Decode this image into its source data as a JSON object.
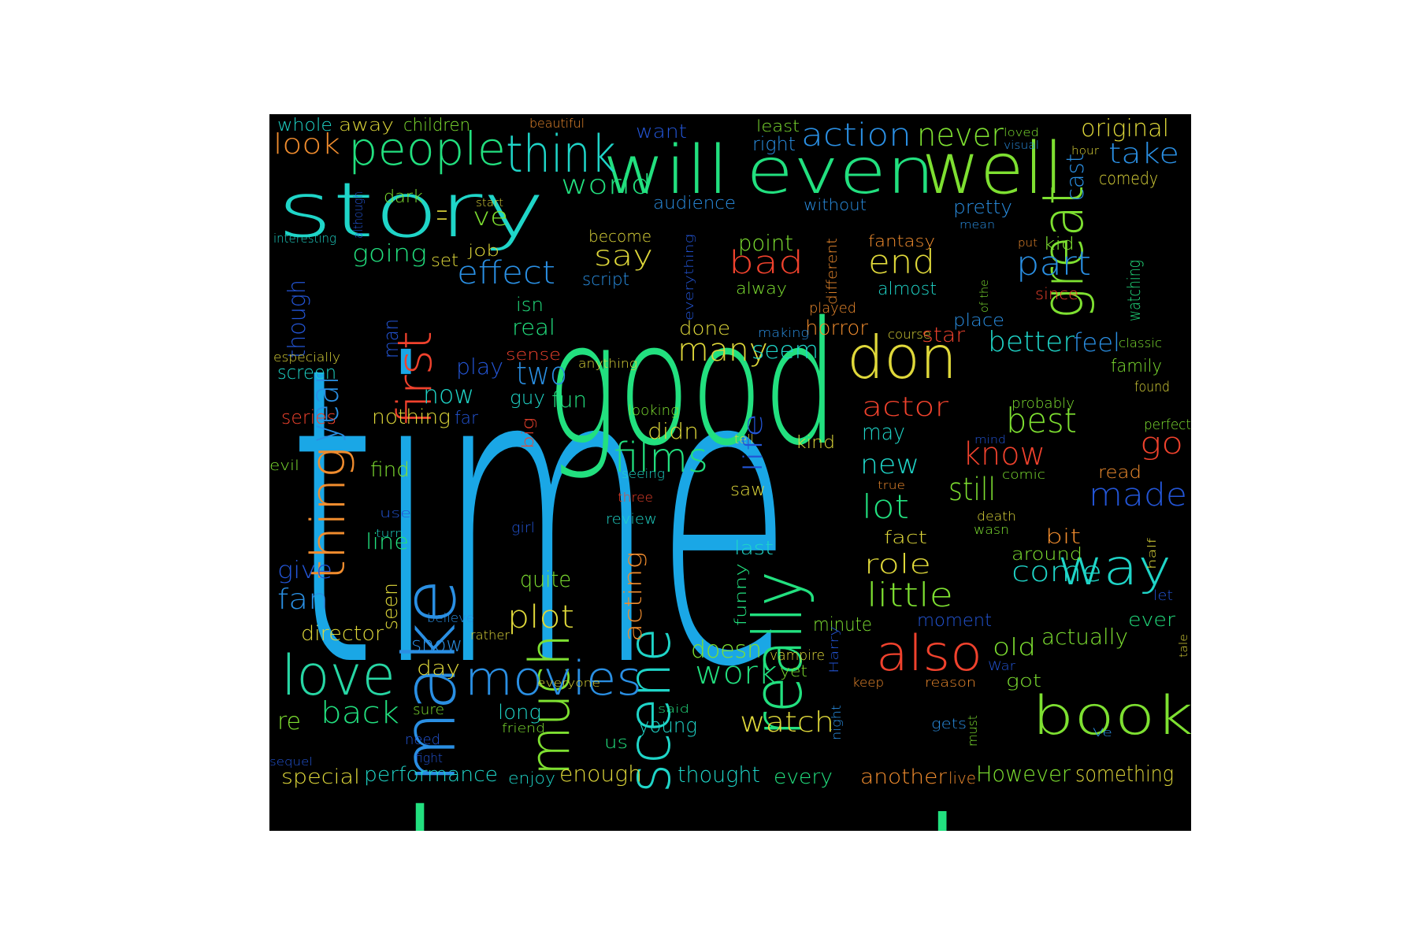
{
  "palette": {
    "blue": "#1aa7e6",
    "teal": "#1fd5c8",
    "green": "#22e07f",
    "lime": "#7ee031",
    "yellow": "#dfd83a",
    "orange": "#f08c2e",
    "red": "#f0422d",
    "navy": "#2355d6",
    "sky": "#2a8fe3",
    "mint": "#27d6a4"
  },
  "words": [
    {
      "t": "time",
      "c": "blue"
    },
    {
      "t": "good",
      "c": "green"
    },
    {
      "t": "character",
      "c": "green"
    },
    {
      "t": "see",
      "c": "navy"
    },
    {
      "t": "story",
      "c": "teal"
    },
    {
      "t": "will",
      "c": "green"
    },
    {
      "t": "even",
      "c": "green"
    },
    {
      "t": "well",
      "c": "lime"
    },
    {
      "t": "people",
      "c": "green"
    },
    {
      "t": "think",
      "c": "teal"
    },
    {
      "t": "make",
      "c": "sky"
    },
    {
      "t": "first",
      "c": "red"
    },
    {
      "t": "year",
      "c": "sky"
    },
    {
      "t": "thing",
      "c": "orange"
    },
    {
      "t": "much",
      "c": "lime"
    },
    {
      "t": "really",
      "c": "green"
    },
    {
      "t": "scene",
      "c": "teal"
    },
    {
      "t": "great",
      "c": "lime"
    },
    {
      "t": "don",
      "c": "yellow"
    },
    {
      "t": "also",
      "c": "red"
    },
    {
      "t": "book",
      "c": "lime"
    },
    {
      "t": "movies",
      "c": "sky"
    },
    {
      "t": "love",
      "c": "mint"
    },
    {
      "t": "way",
      "c": "teal"
    },
    {
      "t": "action",
      "c": "sky"
    },
    {
      "t": "never",
      "c": "lime"
    },
    {
      "t": "original",
      "c": "yellow"
    },
    {
      "t": "take",
      "c": "sky"
    },
    {
      "t": "comedy",
      "c": "yellow"
    },
    {
      "t": "cast",
      "c": "sky"
    },
    {
      "t": "look",
      "c": "orange"
    },
    {
      "t": "whole",
      "c": "teal"
    },
    {
      "t": "away",
      "c": "yellow"
    },
    {
      "t": "children",
      "c": "lime"
    },
    {
      "t": "beautiful",
      "c": "orange"
    },
    {
      "t": "want",
      "c": "navy"
    },
    {
      "t": "least",
      "c": "lime"
    },
    {
      "t": "right",
      "c": "sky"
    },
    {
      "t": "loved",
      "c": "lime"
    },
    {
      "t": "visual",
      "c": "sky"
    },
    {
      "t": "hour",
      "c": "yellow"
    },
    {
      "t": "world",
      "c": "green"
    },
    {
      "t": "dark",
      "c": "lime"
    },
    {
      "t": "start",
      "c": "yellow"
    },
    {
      "t": "ve",
      "c": "lime"
    },
    {
      "t": "ll",
      "c": "yellow"
    },
    {
      "t": "although",
      "c": "navy"
    },
    {
      "t": "interesting",
      "c": "teal"
    },
    {
      "t": "audience",
      "c": "sky"
    },
    {
      "t": "without",
      "c": "sky"
    },
    {
      "t": "pretty",
      "c": "sky"
    },
    {
      "t": "mean",
      "c": "sky"
    },
    {
      "t": "become",
      "c": "yellow"
    },
    {
      "t": "say",
      "c": "yellow"
    },
    {
      "t": "script",
      "c": "sky"
    },
    {
      "t": "point",
      "c": "lime"
    },
    {
      "t": "bad",
      "c": "red"
    },
    {
      "t": "alway",
      "c": "lime"
    },
    {
      "t": "fantasy",
      "c": "orange"
    },
    {
      "t": "end",
      "c": "yellow"
    },
    {
      "t": "almost",
      "c": "teal"
    },
    {
      "t": "kid",
      "c": "lime"
    },
    {
      "t": "put",
      "c": "orange"
    },
    {
      "t": "part",
      "c": "sky"
    },
    {
      "t": "since",
      "c": "red"
    },
    {
      "t": "watching",
      "c": "green"
    },
    {
      "t": "going",
      "c": "green"
    },
    {
      "t": "set",
      "c": "yellow"
    },
    {
      "t": "job",
      "c": "yellow"
    },
    {
      "t": "effect",
      "c": "sky"
    },
    {
      "t": "everything",
      "c": "navy"
    },
    {
      "t": "different",
      "c": "orange"
    },
    {
      "t": "of the",
      "c": "lime"
    },
    {
      "t": "though",
      "c": "navy"
    },
    {
      "t": "man",
      "c": "navy"
    },
    {
      "t": "isn",
      "c": "green"
    },
    {
      "t": "real",
      "c": "green"
    },
    {
      "t": "played",
      "c": "orange"
    },
    {
      "t": "horror",
      "c": "orange"
    },
    {
      "t": "making",
      "c": "sky"
    },
    {
      "t": "done",
      "c": "yellow"
    },
    {
      "t": "course",
      "c": "yellow"
    },
    {
      "t": "star",
      "c": "red"
    },
    {
      "t": "place",
      "c": "sky"
    },
    {
      "t": "better",
      "c": "teal"
    },
    {
      "t": "feel",
      "c": "sky"
    },
    {
      "t": "classic",
      "c": "lime"
    },
    {
      "t": "many",
      "c": "yellow"
    },
    {
      "t": "seem",
      "c": "teal"
    },
    {
      "t": "especially",
      "c": "yellow"
    },
    {
      "t": "screen",
      "c": "teal"
    },
    {
      "t": "play",
      "c": "navy"
    },
    {
      "t": "sense",
      "c": "red"
    },
    {
      "t": "two",
      "c": "sky"
    },
    {
      "t": "anything",
      "c": "yellow"
    },
    {
      "t": "family",
      "c": "lime"
    },
    {
      "t": "found",
      "c": "yellow"
    },
    {
      "t": "now",
      "c": "teal"
    },
    {
      "t": "guy",
      "c": "teal"
    },
    {
      "t": "fun",
      "c": "green"
    },
    {
      "t": "series",
      "c": "red"
    },
    {
      "t": "nothing",
      "c": "yellow"
    },
    {
      "t": "far",
      "c": "navy"
    },
    {
      "t": "looking",
      "c": "lime"
    },
    {
      "t": "didn",
      "c": "yellow"
    },
    {
      "t": "actor",
      "c": "red"
    },
    {
      "t": "probably",
      "c": "lime"
    },
    {
      "t": "best",
      "c": "lime"
    },
    {
      "t": "perfect",
      "c": "lime"
    },
    {
      "t": "go",
      "c": "red"
    },
    {
      "t": "big",
      "c": "red"
    },
    {
      "t": "films",
      "c": "green"
    },
    {
      "t": "tell",
      "c": "yellow"
    },
    {
      "t": "life",
      "c": "navy"
    },
    {
      "t": "kind",
      "c": "yellow"
    },
    {
      "t": "may",
      "c": "teal"
    },
    {
      "t": "mind",
      "c": "navy"
    },
    {
      "t": "know",
      "c": "red"
    },
    {
      "t": "evil",
      "c": "lime"
    },
    {
      "t": "find",
      "c": "lime"
    },
    {
      "t": "seeing",
      "c": "teal"
    },
    {
      "t": "three",
      "c": "red"
    },
    {
      "t": "saw",
      "c": "yellow"
    },
    {
      "t": "new",
      "c": "teal"
    },
    {
      "t": "true",
      "c": "orange"
    },
    {
      "t": "comic",
      "c": "lime"
    },
    {
      "t": "still",
      "c": "lime"
    },
    {
      "t": "read",
      "c": "orange"
    },
    {
      "t": "made",
      "c": "navy"
    },
    {
      "t": "use",
      "c": "navy"
    },
    {
      "t": "turn",
      "c": "teal"
    },
    {
      "t": "line",
      "c": "green"
    },
    {
      "t": "review",
      "c": "teal"
    },
    {
      "t": "girl",
      "c": "navy"
    },
    {
      "t": "lot",
      "c": "green"
    },
    {
      "t": "fact",
      "c": "yellow"
    },
    {
      "t": "death",
      "c": "yellow"
    },
    {
      "t": "wasn",
      "c": "lime"
    },
    {
      "t": "bit",
      "c": "orange"
    },
    {
      "t": "around",
      "c": "lime"
    },
    {
      "t": "last",
      "c": "teal"
    },
    {
      "t": "role",
      "c": "yellow"
    },
    {
      "t": "come",
      "c": "teal"
    },
    {
      "t": "half",
      "c": "yellow"
    },
    {
      "t": "give",
      "c": "navy"
    },
    {
      "t": "fan",
      "c": "sky"
    },
    {
      "t": "quite",
      "c": "lime"
    },
    {
      "t": "acting",
      "c": "orange"
    },
    {
      "t": "funny",
      "c": "green"
    },
    {
      "t": "little",
      "c": "lime"
    },
    {
      "t": "let",
      "c": "navy"
    },
    {
      "t": "seen",
      "c": "yellow"
    },
    {
      "t": "believe",
      "c": "sky"
    },
    {
      "t": "plot",
      "c": "yellow"
    },
    {
      "t": "minute",
      "c": "lime"
    },
    {
      "t": "moment",
      "c": "navy"
    },
    {
      "t": "ever",
      "c": "green"
    },
    {
      "t": "director",
      "c": "yellow"
    },
    {
      "t": "rather",
      "c": "yellow"
    },
    {
      "t": "show",
      "c": "sky"
    },
    {
      "t": "doesn",
      "c": "lime"
    },
    {
      "t": "Harry",
      "c": "navy"
    },
    {
      "t": "old",
      "c": "lime"
    },
    {
      "t": "actually",
      "c": "lime"
    },
    {
      "t": "tale",
      "c": "yellow"
    },
    {
      "t": "day",
      "c": "yellow"
    },
    {
      "t": "work",
      "c": "green"
    },
    {
      "t": "vampire",
      "c": "yellow"
    },
    {
      "t": "yet",
      "c": "lime"
    },
    {
      "t": "War",
      "c": "navy"
    },
    {
      "t": "keep",
      "c": "orange"
    },
    {
      "t": "reason",
      "c": "orange"
    },
    {
      "t": "got",
      "c": "lime"
    },
    {
      "t": "everyone",
      "c": "yellow"
    },
    {
      "t": "back",
      "c": "green"
    },
    {
      "t": "re",
      "c": "lime"
    },
    {
      "t": "sure",
      "c": "lime"
    },
    {
      "t": "long",
      "c": "teal"
    },
    {
      "t": "friend",
      "c": "lime"
    },
    {
      "t": "said",
      "c": "green"
    },
    {
      "t": "young",
      "c": "teal"
    },
    {
      "t": "watch",
      "c": "yellow"
    },
    {
      "t": "night",
      "c": "sky"
    },
    {
      "t": "gets",
      "c": "sky"
    },
    {
      "t": "must",
      "c": "lime"
    },
    {
      "t": "Ve",
      "c": "sky"
    },
    {
      "t": "need",
      "c": "navy"
    },
    {
      "t": "fight",
      "c": "navy"
    },
    {
      "t": "us",
      "c": "green"
    },
    {
      "t": "sequel",
      "c": "navy"
    },
    {
      "t": "special",
      "c": "yellow"
    },
    {
      "t": "performance",
      "c": "teal"
    },
    {
      "t": "enjoy",
      "c": "teal"
    },
    {
      "t": "enough",
      "c": "yellow"
    },
    {
      "t": "thought",
      "c": "teal"
    },
    {
      "t": "every",
      "c": "green"
    },
    {
      "t": "another",
      "c": "orange"
    },
    {
      "t": "live",
      "c": "orange"
    },
    {
      "t": "However",
      "c": "lime"
    },
    {
      "t": "something",
      "c": "yellow"
    }
  ]
}
